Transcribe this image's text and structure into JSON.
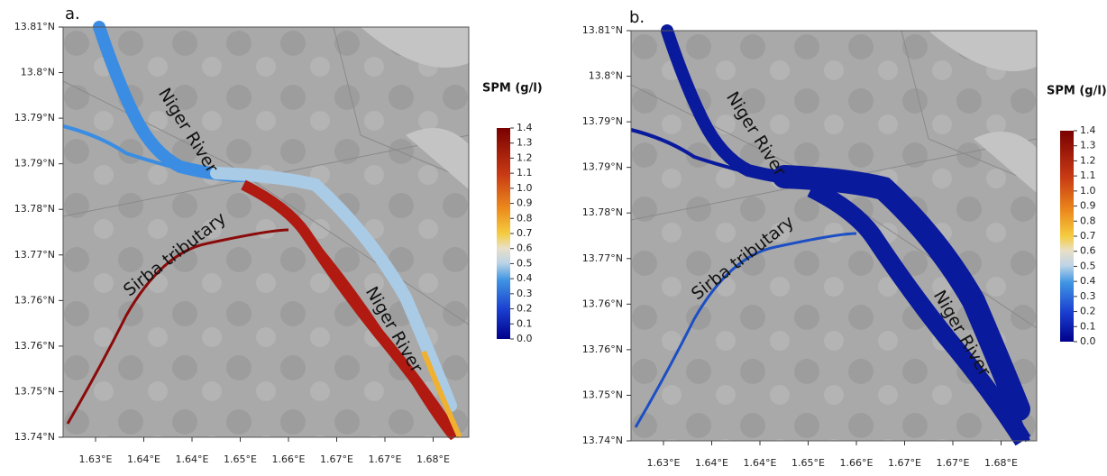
{
  "panels": [
    {
      "label": "a.",
      "lat_ticks": [
        "13.81°N",
        "13.8°N",
        "13.79°N",
        "13.79°N",
        "13.78°N",
        "13.77°N",
        "13.76°N",
        "13.76°N",
        "13.75°N",
        "13.74°N"
      ],
      "lon_ticks": [
        "1.63°E",
        "1.64°E",
        "1.64°E",
        "1.65°E",
        "1.66°E",
        "1.67°E",
        "1.67°E",
        "1.68°E"
      ],
      "legend": {
        "title": "SPM (g/l)",
        "ticks": [
          "1.4",
          "1.3",
          "1.2",
          "1.1",
          "1.0",
          "0.9",
          "0.8",
          "0.7",
          "0.6",
          "0.5",
          "0.4",
          "0.3",
          "0.2",
          "0.1",
          "0.0"
        ]
      },
      "annotations": [
        "Niger River",
        "Sirba tributary",
        "Niger River"
      ]
    },
    {
      "label": "b.",
      "lat_ticks": [
        "13.81°N",
        "13.8°N",
        "13.79°N",
        "13.79°N",
        "13.78°N",
        "13.77°N",
        "13.76°N",
        "13.76°N",
        "13.75°N",
        "13.74°N"
      ],
      "lon_ticks": [
        "1.63°E",
        "1.64°E",
        "1.64°E",
        "1.65°E",
        "1.66°E",
        "1.67°E",
        "1.67°E",
        "1.68°E"
      ],
      "legend": {
        "title": "SPM (g/l)",
        "ticks": [
          "1.4",
          "1.3",
          "1.2",
          "1.1",
          "1.0",
          "0.9",
          "0.8",
          "0.7",
          "0.6",
          "0.5",
          "0.4",
          "0.3",
          "0.2",
          "0.1",
          "0.0"
        ]
      },
      "annotations": [
        "Niger River",
        "Sirba tributary",
        "Niger River"
      ]
    }
  ]
}
